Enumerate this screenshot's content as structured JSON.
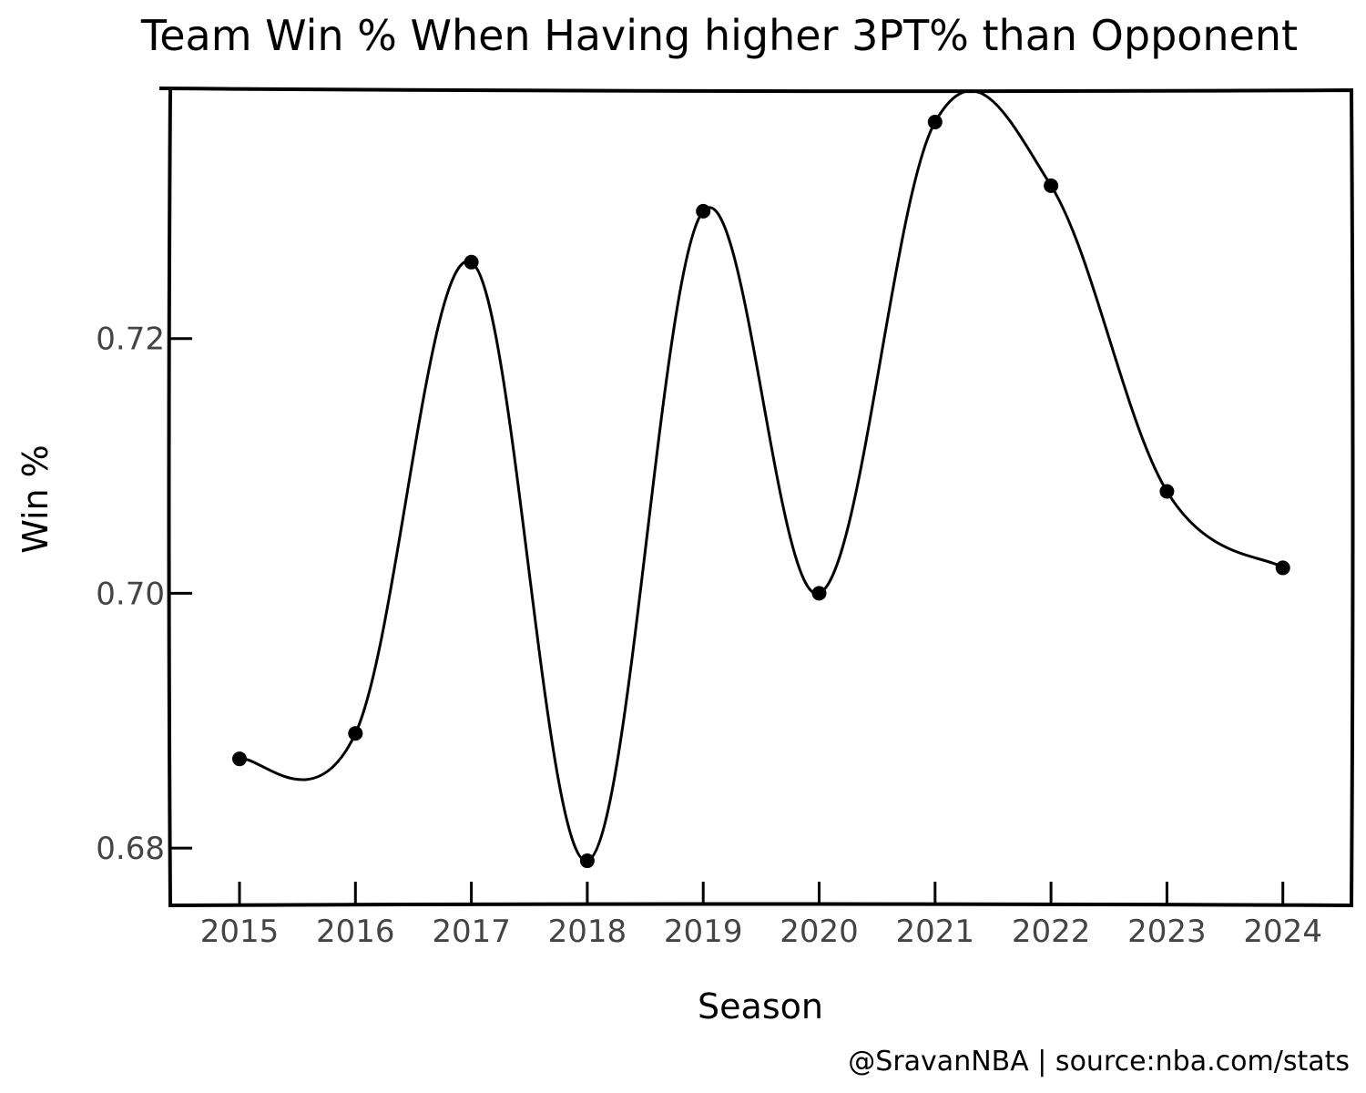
{
  "chart_data": {
    "type": "line",
    "title": "Team Win % When Having higher 3PT% than Opponent",
    "xlabel": "Season",
    "ylabel": "Win %",
    "x": [
      2015,
      2016,
      2017,
      2018,
      2019,
      2020,
      2021,
      2022,
      2023,
      2024
    ],
    "y_ticks": [
      0.68,
      0.7,
      0.72
    ],
    "y_tick_labels": [
      "0.68",
      "0.70",
      "0.72"
    ],
    "ylim": [
      0.6755,
      0.7395
    ],
    "series": [
      {
        "values": [
          0.687,
          0.689,
          0.726,
          0.679,
          0.73,
          0.7,
          0.737,
          0.732,
          0.708,
          0.702
        ],
        "color": "#000000"
      }
    ],
    "grid": false,
    "legend": "none",
    "footer": "@SravanNBA | source:nba.com/stats"
  }
}
